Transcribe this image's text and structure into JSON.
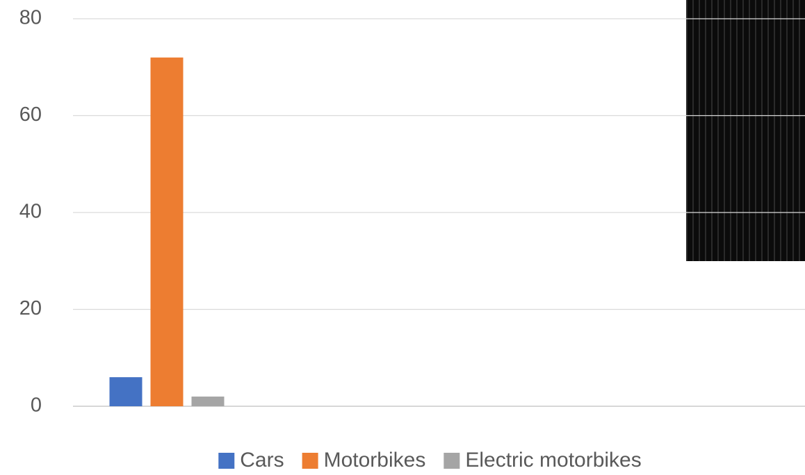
{
  "chart_data": {
    "type": "bar",
    "categories": [
      null
    ],
    "series": [
      {
        "name": "Cars",
        "color": "#4472c4",
        "values": [
          6
        ]
      },
      {
        "name": "Motorbikes",
        "color": "#ed7d31",
        "values": [
          72
        ]
      },
      {
        "name": "Electric motorbikes",
        "color": "#a5a5a5",
        "values": [
          2
        ]
      }
    ],
    "ylim": [
      0,
      80
    ],
    "yticks": [
      0,
      20,
      40,
      60,
      80
    ],
    "grid": true,
    "legend": "bottom"
  }
}
